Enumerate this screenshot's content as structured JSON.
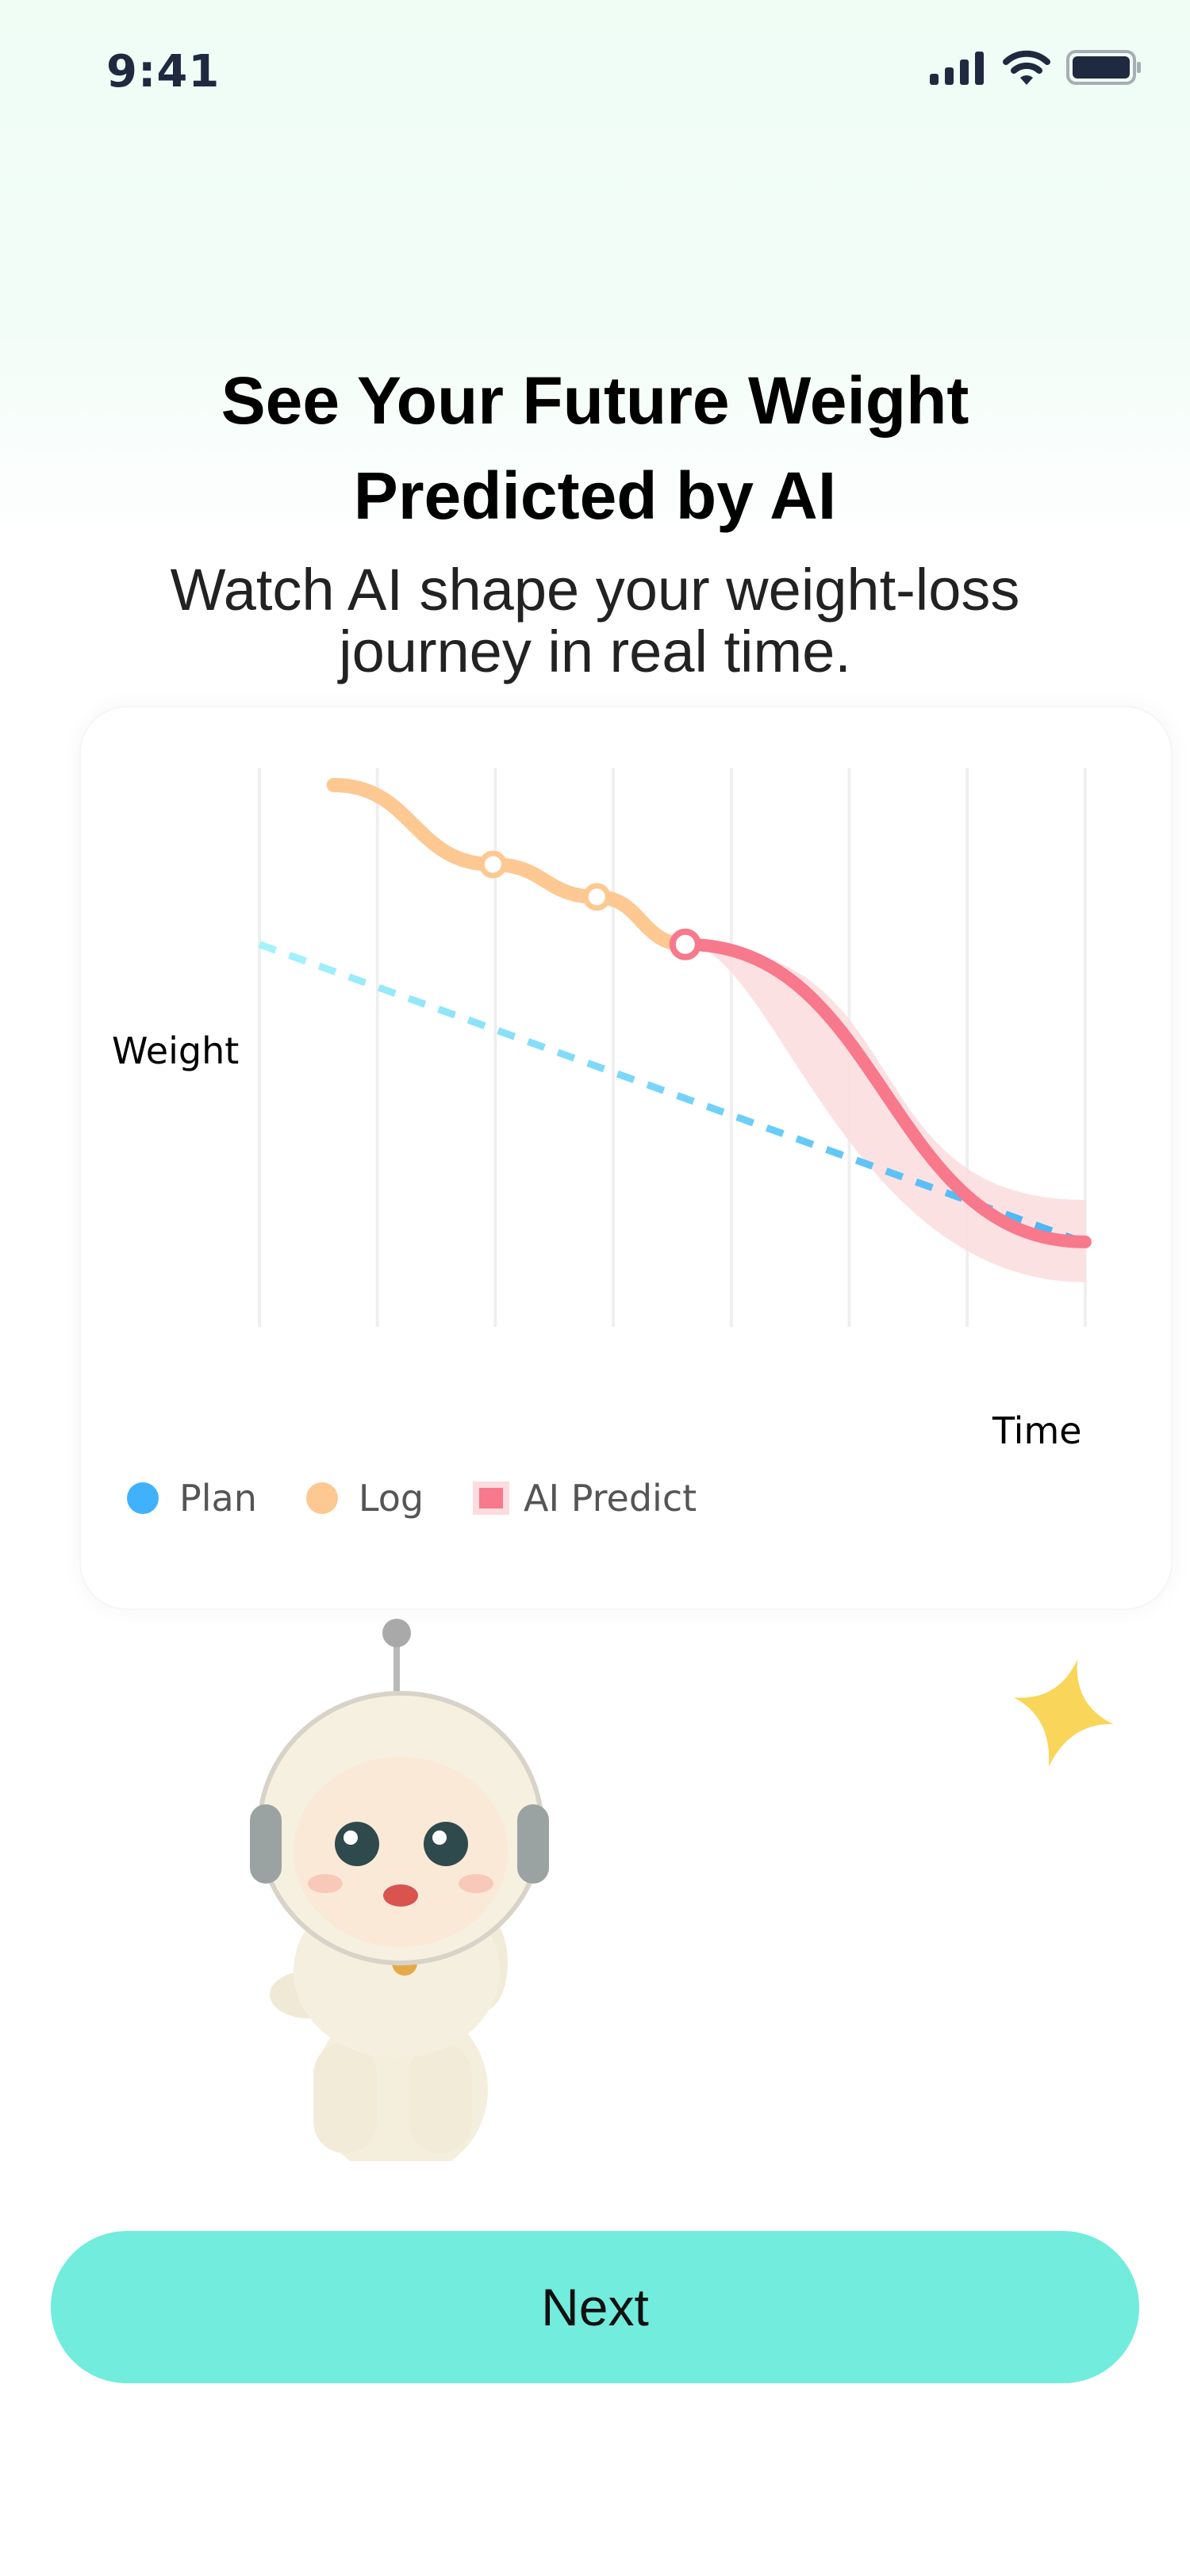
{
  "status_bar": {
    "time": "9:41",
    "icons": [
      "signal-icon",
      "wifi-icon",
      "battery-icon"
    ]
  },
  "header": {
    "title_line1": "See Your Future Weight",
    "title_line2": "Predicted by AI",
    "subtitle_line1": "Watch AI shape your weight-loss",
    "subtitle_line2": "journey in real time."
  },
  "chart_data": {
    "type": "line",
    "title": "",
    "xlabel": "Time",
    "ylabel": "Weight",
    "grid": "vertical lines",
    "legend_placement": "bottom-left",
    "series": [
      {
        "name": "Plan",
        "color": "#45b4f6",
        "style": "dashed",
        "points": [
          [
            0,
            68.4
          ],
          [
            7,
            15.0
          ]
        ]
      },
      {
        "name": "Log",
        "color": "#fdc891",
        "style": "solid",
        "points": [
          [
            0.63,
            96.9
          ],
          [
            1.98,
            82.7
          ],
          [
            2.86,
            76.9
          ],
          [
            3.61,
            68.4
          ]
        ],
        "markers": [
          [
            1.98,
            82.7
          ],
          [
            2.86,
            76.9
          ]
        ]
      },
      {
        "name": "AI Predict",
        "color": "#f7798b",
        "band_color": "#fcdcde",
        "style": "solid",
        "points": [
          [
            3.61,
            68.4
          ],
          [
            7,
            15.2
          ]
        ],
        "band_upper": [
          [
            3.61,
            68.4
          ],
          [
            7,
            22.7
          ]
        ],
        "band_lower": [
          [
            3.61,
            68.4
          ],
          [
            7,
            8.0
          ]
        ],
        "markers": [
          [
            3.61,
            68.4
          ]
        ]
      }
    ]
  },
  "legend": {
    "plan": "Plan",
    "log": "Log",
    "ai_predict": "AI Predict",
    "plan_color": "#3fb2fb",
    "log_color": "#fdc891",
    "ai_color": "#f7798b"
  },
  "footer": {
    "next_label": "Next",
    "accent": "#72ecdc"
  }
}
